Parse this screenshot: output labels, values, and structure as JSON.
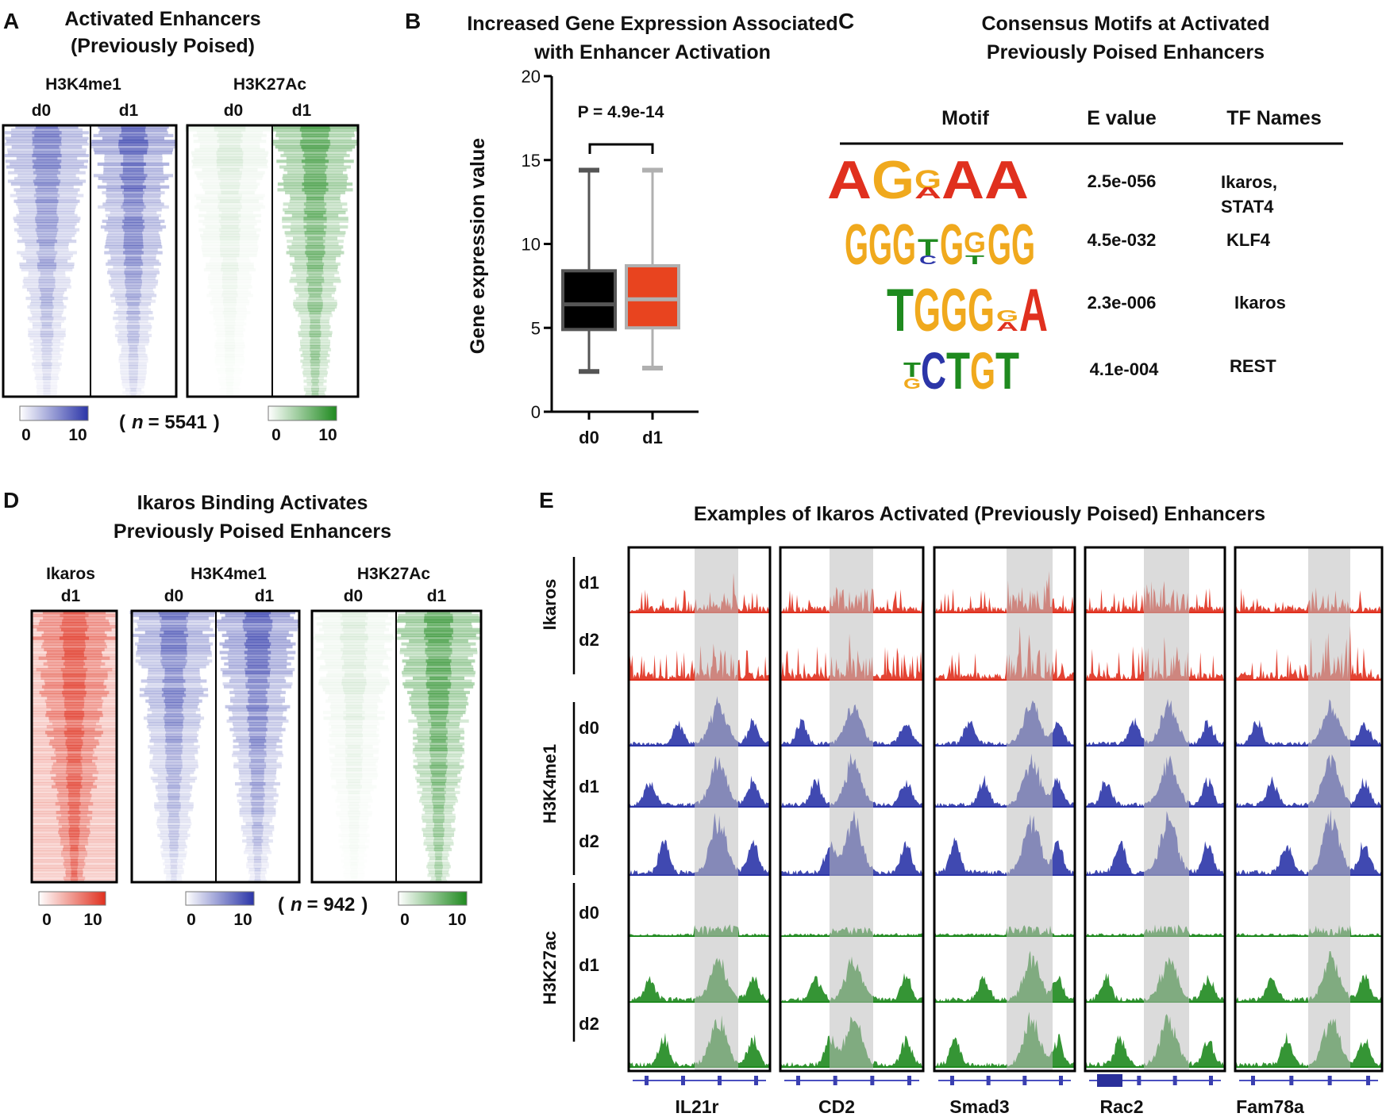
{
  "colors": {
    "blue": "#2b35a8",
    "green": "#1f8a1f",
    "red": "#e0301e",
    "box_d0": "#000000",
    "box_d1": "#e8441f",
    "shade": "#bdbdbd"
  },
  "panelA": {
    "letter": "A",
    "title1": "Activated Enhancers",
    "title2": "(Previously Poised)",
    "group1": "H3K4me1",
    "group2": "H3K27Ac",
    "d0": "d0",
    "d1": "d1",
    "n_open": "(",
    "n_italic": "n",
    "n_value": "= 5541",
    "n_close": ")",
    "scale_min": "0",
    "scale_max": "10"
  },
  "panelB": {
    "letter": "B",
    "title1": "Increased Gene Expression Associated",
    "title2": "with Enhancer Activation",
    "ylabel": "Gene expression value",
    "pvalue": "P = 4.9e-14"
  },
  "chart_data": {
    "type": "box",
    "title": "Increased Gene Expression Associated with Enhancer Activation",
    "xlabel": "",
    "ylabel": "Gene expression value",
    "ylim": [
      0,
      20
    ],
    "yticks": [
      "0",
      "5",
      "10",
      "15",
      "20"
    ],
    "categories": [
      "d0",
      "d1"
    ],
    "boxes": [
      {
        "name": "d0",
        "whisker_low": 2.4,
        "q1": 4.9,
        "median": 6.4,
        "q3": 8.4,
        "whisker_high": 14.4
      },
      {
        "name": "d1",
        "whisker_low": 2.6,
        "q1": 5.0,
        "median": 6.7,
        "q3": 8.7,
        "whisker_high": 14.4
      }
    ],
    "annotation": "P = 4.9e-14"
  },
  "panelC": {
    "letter": "C",
    "title1": "Consensus Motifs at Activated",
    "title2": "Previously Poised Enhancers",
    "headers": [
      "Motif",
      "E value",
      "TF Names"
    ],
    "rows": [
      {
        "evalue": "2.5e-056",
        "tf1": "Ikaros,",
        "tf2": "STAT4",
        "logo": [
          "A",
          "G",
          "G",
          "A",
          "A"
        ]
      },
      {
        "evalue": "4.5e-032",
        "tf1": "KLF4",
        "tf2": "",
        "logo": [
          "G",
          "G",
          "G",
          "T",
          "G",
          "G",
          "G",
          "G"
        ]
      },
      {
        "evalue": "2.3e-006",
        "tf1": "Ikaros",
        "tf2": "",
        "logo": [
          "T",
          "G",
          "G",
          "G",
          "A",
          "A"
        ]
      },
      {
        "evalue": "4.1e-004",
        "tf1": "REST",
        "tf2": "",
        "logo": [
          "T",
          "C",
          "T",
          "G",
          "T"
        ]
      }
    ]
  },
  "panelD": {
    "letter": "D",
    "title1": "Ikaros Binding Activates",
    "title2": "Previously Poised Enhancers",
    "group0": "Ikaros",
    "group1": "H3K4me1",
    "group2": "H3K27Ac",
    "d0": "d0",
    "d1": "d1",
    "n_open": "(",
    "n_italic": "n",
    "n_value": "= 942",
    "n_close": ")",
    "scale_min": "0",
    "scale_max": "10"
  },
  "panelE": {
    "letter": "E",
    "title": "Examples of Ikaros Activated (Previously Poised) Enhancers",
    "groups": [
      "Ikaros",
      "H3K4me1",
      "H3K27ac"
    ],
    "tracks": [
      "d1",
      "d2",
      "d0",
      "d1",
      "d2",
      "d0",
      "d1",
      "d2"
    ],
    "genes": [
      "IL21r",
      "CD2",
      "Smad3",
      "Rac2",
      "Fam78a"
    ]
  }
}
